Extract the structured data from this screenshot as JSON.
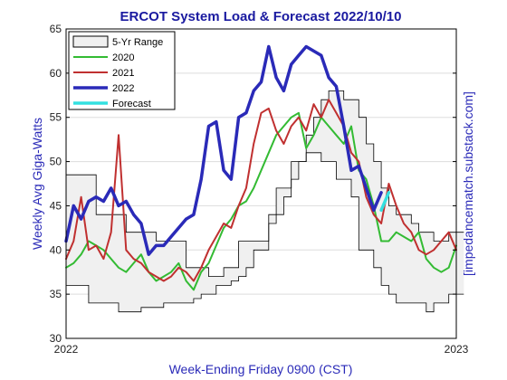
{
  "chart_data": {
    "type": "line",
    "title": "ERCOT System Load & Forecast 2022/10/10",
    "xlabel": "Week-Ending Friday 0900 (CST)",
    "ylabel": "Weekly Avg Giga-Watts",
    "ylabel_right": "[impedancematch.substack.com]",
    "x_ticks": [
      "2022",
      "2023"
    ],
    "xlim": [
      0,
      52
    ],
    "ylim": [
      30,
      65
    ],
    "y_ticks": [
      30,
      35,
      40,
      45,
      50,
      55,
      60,
      65
    ],
    "grid": true,
    "legend_position": "top-left",
    "legend": [
      "5-Yr Range",
      "2020",
      "2021",
      "2022",
      "Forecast"
    ],
    "colors": {
      "range_fill": "#f0f0f0",
      "range_edge": "#000000",
      "s2020": "#33bb33",
      "s2021": "#c03030",
      "s2022": "#2a2ab8",
      "forecast": "#33e0e0",
      "title": "#1a1aa0",
      "axis_label": "#2a2ab8"
    },
    "range": {
      "upper": [
        48.5,
        48.5,
        48.5,
        48.5,
        44,
        44,
        44,
        44,
        42,
        42,
        42,
        42,
        41,
        41,
        41,
        41,
        38,
        38,
        38,
        37,
        37,
        38,
        38,
        41,
        41,
        41,
        41,
        44,
        47,
        47,
        50,
        50,
        53,
        55,
        57,
        58,
        58,
        57,
        57,
        55,
        52,
        50,
        47,
        45,
        44,
        44,
        43,
        42,
        42,
        41,
        41,
        42,
        42
      ],
      "lower": [
        36,
        36,
        36,
        34,
        34,
        34,
        34,
        33,
        33,
        33,
        33.5,
        33.5,
        33.5,
        34,
        34,
        34,
        34,
        34.5,
        35,
        35,
        36,
        36,
        36.5,
        37,
        38,
        40,
        40,
        43,
        44,
        46,
        48,
        50,
        51,
        51,
        50,
        50,
        48,
        48,
        46,
        40,
        40,
        38,
        36,
        35,
        34,
        34,
        34,
        34,
        33,
        34,
        34,
        35,
        35
      ]
    },
    "series": [
      {
        "name": "2020",
        "values": [
          38,
          38.5,
          39.5,
          41,
          40.5,
          40,
          39,
          38,
          37.5,
          38.5,
          39.5,
          37.5,
          36.5,
          37,
          37.5,
          38.5,
          36.5,
          35.5,
          37.5,
          38.5,
          40.5,
          42.5,
          43.5,
          45,
          45.5,
          47,
          49,
          51,
          53,
          54,
          55,
          55.5,
          51.5,
          53,
          55,
          54,
          53,
          52,
          54,
          49,
          48,
          45,
          41,
          41,
          42,
          41.5,
          41,
          42,
          39,
          38,
          37.5,
          38,
          40.5
        ]
      },
      {
        "name": "2021",
        "values": [
          39,
          41,
          46,
          40,
          40.5,
          39,
          42,
          53,
          40,
          39,
          38.5,
          37.5,
          37,
          36.5,
          37,
          38,
          37.5,
          36.5,
          38,
          40,
          41.5,
          43,
          42.5,
          45,
          47,
          52,
          55.5,
          56,
          53.5,
          52,
          54,
          55,
          53.5,
          56.5,
          55,
          57,
          55.5,
          54,
          51,
          50,
          46,
          44,
          43,
          47.5,
          45,
          43,
          42,
          40,
          39.5,
          40,
          41,
          42,
          40
        ]
      },
      {
        "name": "2022",
        "values": [
          41,
          45,
          43.5,
          45.5,
          46,
          45.5,
          47,
          45,
          45.5,
          44,
          43,
          39.5,
          40.5,
          40.5,
          41.5,
          42.5,
          43.5,
          44,
          48,
          54,
          54.5,
          49,
          48,
          55,
          55.5,
          58,
          59,
          63,
          59.5,
          58,
          61,
          62,
          63,
          62.5,
          62,
          59.5,
          58.5,
          54,
          49,
          49.5,
          47,
          44.5,
          46.5
        ]
      },
      {
        "name": "Forecast",
        "start_index": 42,
        "values": [
          44.5,
          46.5
        ]
      }
    ]
  }
}
